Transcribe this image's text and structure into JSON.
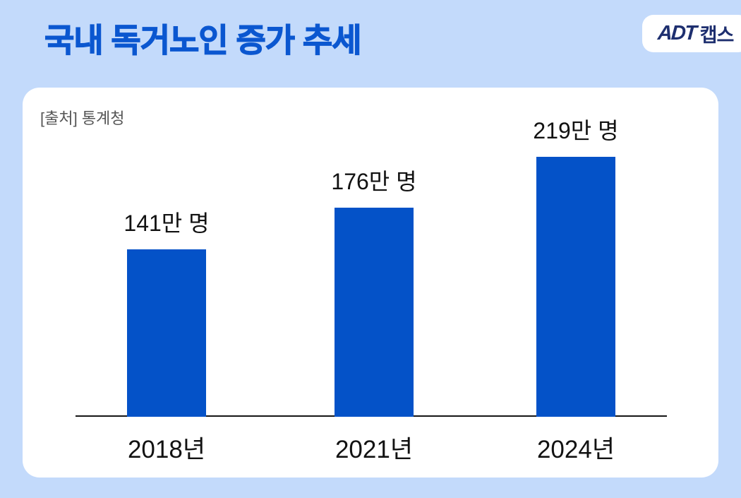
{
  "page": {
    "background_color": "#c3dafb"
  },
  "header": {
    "title": "국내 독거노인 증가 추세",
    "title_color": "#0b57d0",
    "logo_adt": "ADT",
    "logo_caps": "캡스"
  },
  "card": {
    "source_label": "[출처] 통계청"
  },
  "chart_data": {
    "type": "bar",
    "title": "국내 독거노인 증가 추세",
    "source": "[출처] 통계청",
    "categories": [
      "2018년",
      "2021년",
      "2024년"
    ],
    "values": [
      141,
      176,
      219
    ],
    "value_labels": [
      "141만 명",
      "176만 명",
      "219만 명"
    ],
    "unit": "만 명",
    "bar_color": "#0452c8",
    "ylim": [
      0,
      230
    ],
    "grid": false,
    "legend": false,
    "xlabel": "",
    "ylabel": ""
  }
}
